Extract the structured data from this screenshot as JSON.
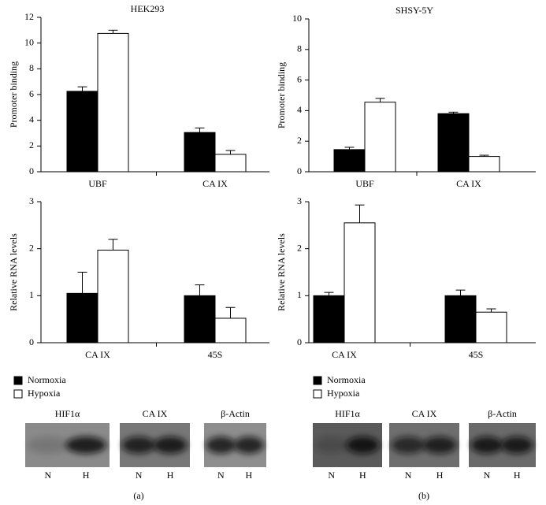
{
  "chart_data": [
    {
      "type": "bar",
      "title": "HEK293",
      "y_label": "Promoter binding",
      "categories": [
        "UBF",
        "CA IX"
      ],
      "series": [
        {
          "color": "#000000",
          "values": [
            6.25,
            3.05
          ],
          "errors": [
            0.35,
            0.35
          ]
        },
        {
          "color": "#ffffff",
          "values": [
            10.75,
            1.35
          ],
          "errors": [
            0.25,
            0.3
          ]
        }
      ],
      "ylim": [
        0,
        12
      ],
      "yticks": [
        0,
        2,
        4,
        6,
        8,
        10,
        12
      ]
    },
    {
      "type": "bar",
      "y_label": "Relative RNA levels",
      "categories": [
        "CA IX",
        "45S"
      ],
      "series": [
        {
          "name": "Normoxia",
          "color": "#000000",
          "values": [
            1.05,
            1.0
          ],
          "errors": [
            0.45,
            0.23
          ]
        },
        {
          "name": "Hypoxia",
          "color": "#ffffff",
          "values": [
            1.97,
            0.52
          ],
          "errors": [
            0.23,
            0.23
          ]
        }
      ],
      "ylim": [
        0,
        3
      ],
      "yticks": [
        0,
        1,
        2,
        3
      ]
    },
    {
      "type": "bar",
      "title": "SHSY-5Y",
      "y_label": "Promoter binding",
      "categories": [
        "UBF",
        "CA IX"
      ],
      "series": [
        {
          "color": "#000000",
          "values": [
            1.45,
            3.8
          ],
          "errors": [
            0.15,
            0.1
          ]
        },
        {
          "color": "#ffffff",
          "values": [
            4.55,
            1.0
          ],
          "errors": [
            0.25,
            0.08
          ]
        }
      ],
      "ylim": [
        0,
        10
      ],
      "yticks": [
        0,
        2,
        4,
        6,
        8,
        10
      ]
    },
    {
      "type": "bar",
      "y_label": "Relative RNA levels",
      "categories": [
        "CA IX",
        "45S"
      ],
      "series": [
        {
          "name": "Normoxia",
          "color": "#000000",
          "values": [
            1.0,
            1.0
          ],
          "errors": [
            0.07,
            0.12
          ]
        },
        {
          "name": "Hypoxia",
          "color": "#ffffff",
          "values": [
            2.55,
            0.65
          ],
          "errors": [
            0.38,
            0.07
          ]
        }
      ],
      "ylim": [
        0,
        3
      ],
      "yticks": [
        0,
        1,
        2,
        3
      ]
    }
  ],
  "blots": [
    {
      "panel": "(a)",
      "blots": [
        {
          "label": "HIF1α",
          "lanes": [
            "N",
            "H"
          ]
        },
        {
          "label": "CA IX",
          "lanes": [
            "N",
            "H"
          ]
        },
        {
          "label": "β-Actin",
          "lanes": [
            "N",
            "H"
          ]
        }
      ]
    },
    {
      "panel": "(b)",
      "blots": [
        {
          "label": "HIF1α",
          "lanes": [
            "N",
            "H"
          ]
        },
        {
          "label": "CA IX",
          "lanes": [
            "N",
            "H"
          ]
        },
        {
          "label": "β-Actin",
          "lanes": [
            "N",
            "H"
          ]
        }
      ]
    }
  ]
}
